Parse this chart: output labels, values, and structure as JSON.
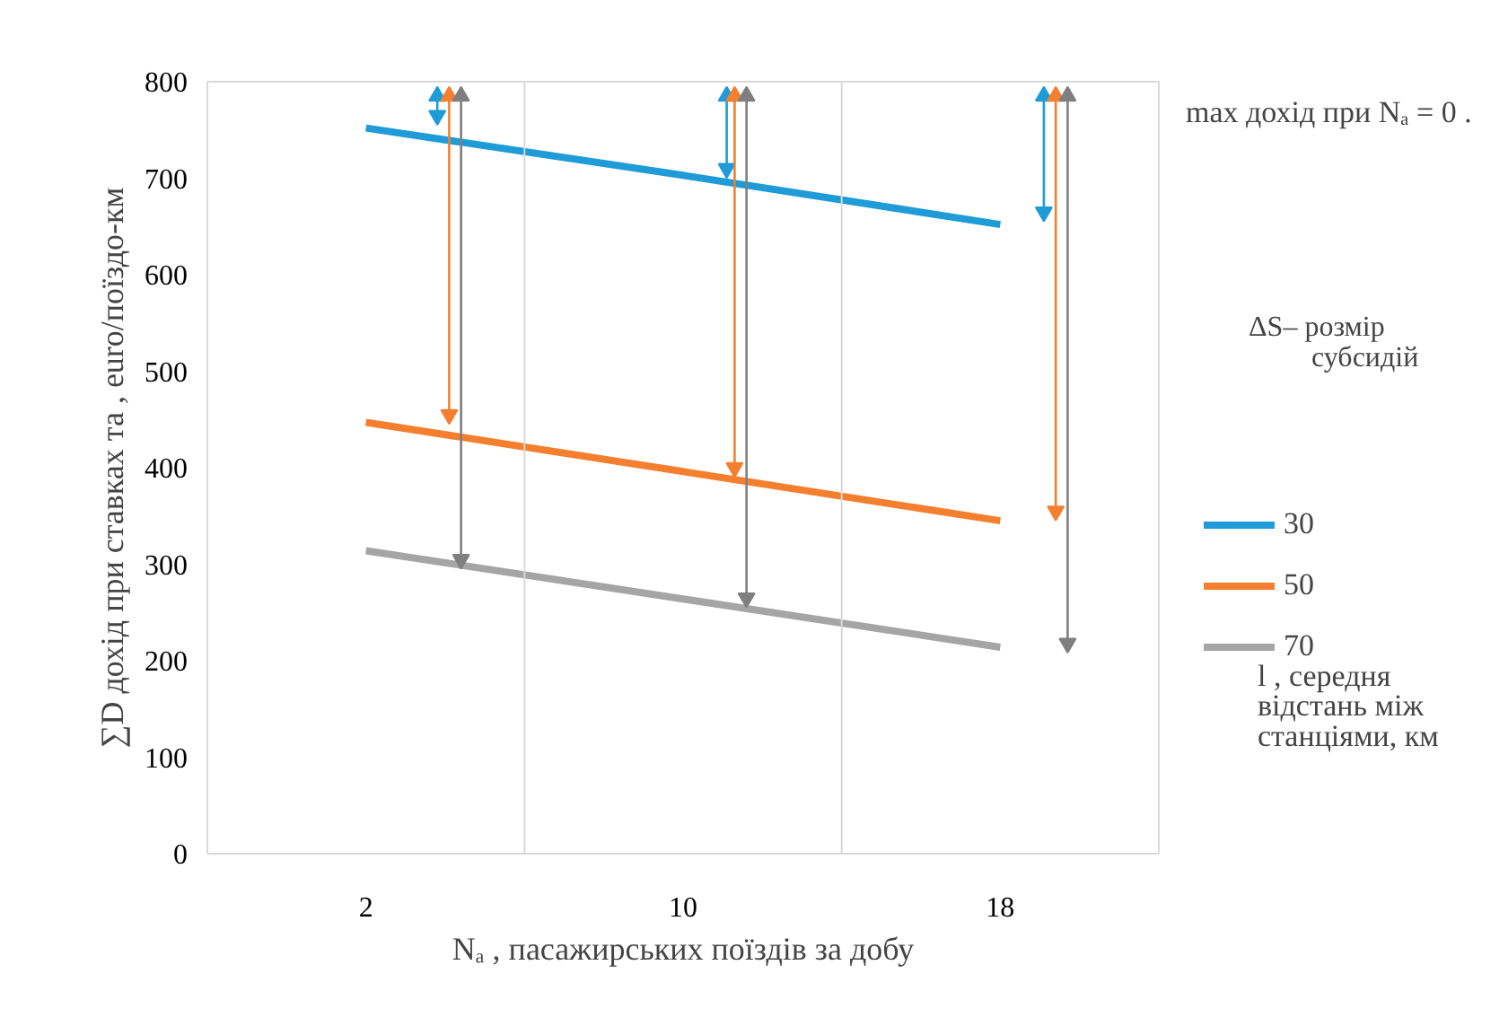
{
  "chart_data": {
    "type": "line",
    "xlabel": "Nₐ , пасажирських поїздів за добу",
    "ylabel": "∑D дохід при ставках та , euro/поїздо-км",
    "legend_title": "l , середня відстань між станціями, км",
    "annotations": [
      "max дохід при  Nₐ = 0 .",
      "ΔS– розмір субсидій"
    ],
    "x": [
      2,
      10,
      18
    ],
    "xlim": [
      -2,
      22
    ],
    "xticks": [
      2,
      10,
      18
    ],
    "ylim": [
      0,
      800
    ],
    "yticks": [
      0,
      100,
      200,
      300,
      400,
      500,
      600,
      700,
      800
    ],
    "grid": false,
    "legend": "right",
    "ref_lines": [
      {
        "axis": "x",
        "value": 6,
        "color": "#d9d9d9"
      },
      {
        "axis": "x",
        "value": 14,
        "color": "#d9d9d9"
      }
    ],
    "series": [
      {
        "name": "30",
        "color": "#1f9bd7",
        "values": [
          752,
          703,
          652
        ]
      },
      {
        "name": "50",
        "color": "#f47f2f",
        "values": [
          447,
          396,
          345
        ]
      },
      {
        "name": "70",
        "color": "#a5a5a5",
        "values": [
          314,
          264,
          214
        ]
      },
      {
        "type": "line",
        "marker": "triangle",
        "color": "#1f9bd7",
        "x": [
          3.8,
          3.8
        ],
        "values": [
          785,
          765
        ]
      },
      {
        "type": "line",
        "marker": "triangle",
        "color": "#f47f2f",
        "x": [
          4.1,
          4.1
        ],
        "values": [
          785,
          455
        ]
      },
      {
        "type": "line",
        "marker": "triangle",
        "color": "#7f7f7f",
        "x": [
          4.4,
          4.4
        ],
        "values": [
          785,
          305
        ]
      },
      {
        "type": "line",
        "marker": "triangle",
        "color": "#1f9bd7",
        "x": [
          11.1,
          11.1
        ],
        "values": [
          785,
          710
        ]
      },
      {
        "type": "line",
        "marker": "triangle",
        "color": "#f47f2f",
        "x": [
          11.3,
          11.3
        ],
        "values": [
          785,
          400
        ]
      },
      {
        "type": "line",
        "marker": "triangle",
        "color": "#7f7f7f",
        "x": [
          11.6,
          11.6
        ],
        "values": [
          785,
          265
        ]
      },
      {
        "type": "line",
        "marker": "triangle",
        "color": "#1f9bd7",
        "x": [
          19.1,
          19.1
        ],
        "values": [
          785,
          665
        ]
      },
      {
        "type": "line",
        "marker": "triangle",
        "color": "#f47f2f",
        "x": [
          19.4,
          19.4
        ],
        "values": [
          785,
          355
        ]
      },
      {
        "type": "line",
        "marker": "triangle",
        "color": "#7f7f7f",
        "x": [
          19.7,
          19.7
        ],
        "values": [
          785,
          218
        ]
      }
    ]
  }
}
